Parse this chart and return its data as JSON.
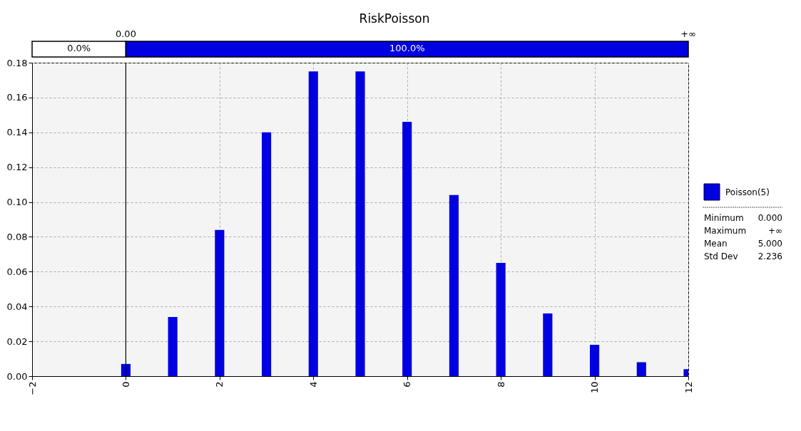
{
  "chart_data": {
    "type": "bar",
    "title": "RiskPoisson",
    "x": [
      0,
      1,
      2,
      3,
      4,
      5,
      6,
      7,
      8,
      9,
      10,
      11,
      12
    ],
    "series": [
      {
        "name": "Poisson(5)",
        "color": "#0000e0",
        "values": [
          0.007,
          0.034,
          0.084,
          0.14,
          0.175,
          0.175,
          0.146,
          0.104,
          0.065,
          0.036,
          0.018,
          0.008,
          0.004
        ]
      }
    ],
    "xlim": [
      -2,
      12
    ],
    "xticks": [
      -2,
      0,
      2,
      4,
      6,
      8,
      10,
      12
    ],
    "ylim": [
      0,
      0.18
    ],
    "yticks": [
      {
        "value": 0,
        "label": "0.00"
      },
      {
        "value": 0.02,
        "label": "0.02"
      },
      {
        "value": 0.04,
        "label": "0.04"
      },
      {
        "value": 0.06,
        "label": "0.06"
      },
      {
        "value": 0.08,
        "label": "0.08"
      },
      {
        "value": 0.1,
        "label": "0.10"
      },
      {
        "value": 0.12,
        "label": "0.12"
      },
      {
        "value": 0.14,
        "label": "0.14"
      },
      {
        "value": 0.16,
        "label": "0.16"
      },
      {
        "value": 0.18,
        "label": "0.18"
      }
    ],
    "ref_lines": [
      {
        "axis": "x",
        "value": 0,
        "label": "0.00",
        "color": "#000000"
      }
    ],
    "annotations": [
      "0.0%",
      "100.0%",
      "+∞",
      "Minimum 0.000",
      "Maximum +∞",
      "Mean 5.000",
      "Std Dev 2.236"
    ],
    "grid": true,
    "legend": "right"
  }
}
